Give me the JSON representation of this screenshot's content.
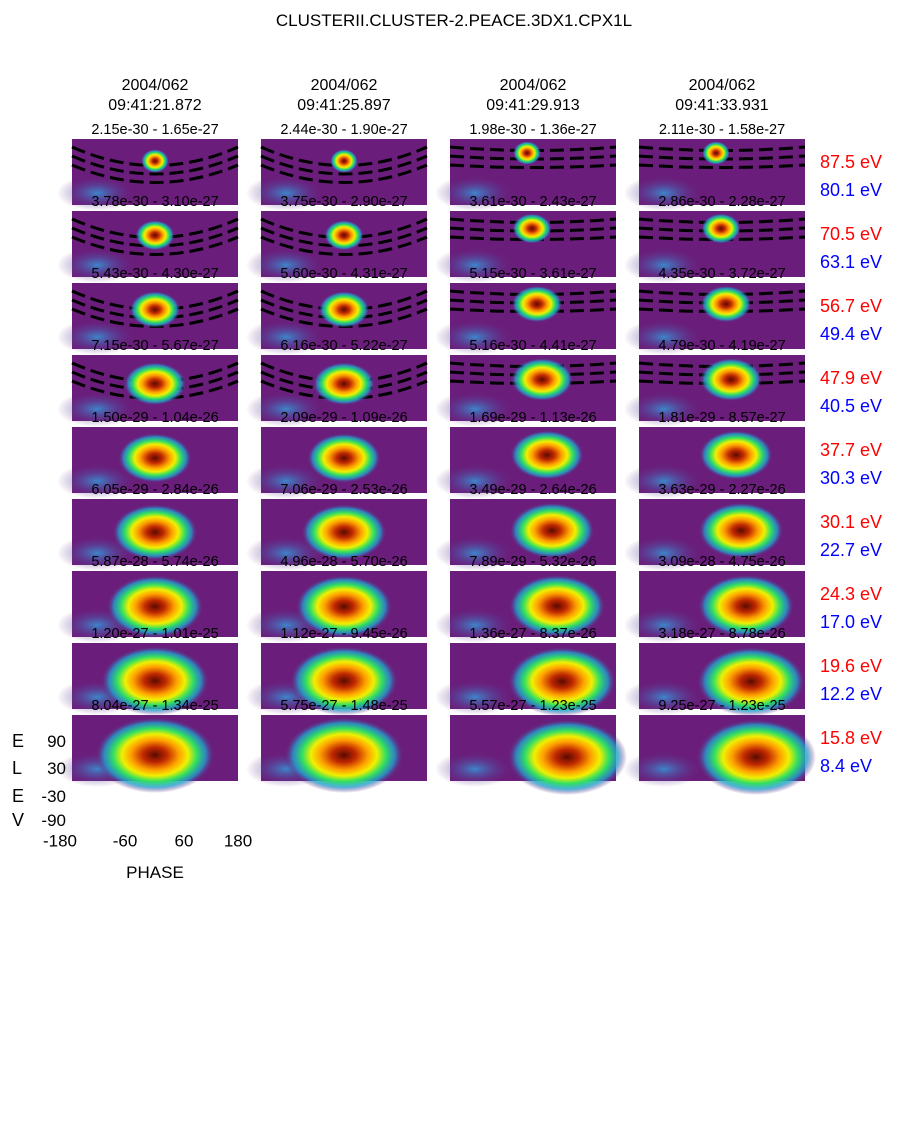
{
  "title": "CLUSTERII.CLUSTER-2.PEACE.3DX1.CPX1L",
  "columns": [
    {
      "date": "2004/062",
      "time": "09:41:21.872"
    },
    {
      "date": "2004/062",
      "time": "09:41:25.897"
    },
    {
      "date": "2004/062",
      "time": "09:41:29.913"
    },
    {
      "date": "2004/062",
      "time": "09:41:33.931"
    }
  ],
  "rows": [
    {
      "ranges": [
        "2.15e-30 - 1.65e-27",
        "2.44e-30 - 1.90e-27",
        "1.98e-30 - 1.36e-27",
        "2.11e-30 - 1.58e-27"
      ],
      "energy_high": "87.5 eV",
      "energy_low": "80.1 eV"
    },
    {
      "ranges": [
        "3.78e-30 - 3.10e-27",
        "3.75e-30 - 2.90e-27",
        "3.61e-30 - 2.43e-27",
        "2.86e-30 - 2.28e-27"
      ],
      "energy_high": "70.5 eV",
      "energy_low": "63.1 eV"
    },
    {
      "ranges": [
        "5.43e-30 - 4.30e-27",
        "5.60e-30 - 4.31e-27",
        "5.15e-30 - 3.61e-27",
        "4.35e-30 - 3.72e-27"
      ],
      "energy_high": "56.7 eV",
      "energy_low": "49.4 eV"
    },
    {
      "ranges": [
        "7.15e-30 - 5.67e-27",
        "6.16e-30 - 5.22e-27",
        "5.16e-30 - 4.41e-27",
        "4.79e-30 - 4.19e-27"
      ],
      "energy_high": "47.9 eV",
      "energy_low": "40.5 eV"
    },
    {
      "ranges": [
        "1.50e-29 - 1.04e-26",
        "2.09e-29 - 1.09e-26",
        "1.69e-29 - 1.13e-26",
        "1.81e-29 - 8.57e-27"
      ],
      "energy_high": "37.7 eV",
      "energy_low": "30.3 eV"
    },
    {
      "ranges": [
        "6.05e-29 - 2.84e-26",
        "7.06e-29 - 2.53e-26",
        "3.49e-29 - 2.64e-26",
        "3.63e-29 - 2.27e-26"
      ],
      "energy_high": "30.1 eV",
      "energy_low": "22.7 eV"
    },
    {
      "ranges": [
        "5.87e-28 - 5.74e-26",
        "4.96e-28 - 5.70e-26",
        "7.89e-29 - 5.32e-26",
        "3.09e-28 - 4.75e-26"
      ],
      "energy_high": "24.3 eV",
      "energy_low": "17.0 eV"
    },
    {
      "ranges": [
        "1.20e-27 - 1.01e-25",
        "1.12e-27 - 9.45e-26",
        "1.36e-27 - 8.37e-26",
        "3.18e-27 - 8.78e-26"
      ],
      "energy_high": "19.6 eV",
      "energy_low": "12.2 eV"
    },
    {
      "ranges": [
        "8.04e-27 - 1.34e-25",
        "5.75e-27 - 1.48e-25",
        "5.57e-27 - 1.23e-25",
        "9.25e-27 - 1.23e-25"
      ],
      "energy_high": "15.8 eV",
      "energy_low": "8.4 eV"
    }
  ],
  "y_label_letters": [
    "E",
    "L",
    "E",
    "V"
  ],
  "yticks": [
    90,
    30,
    -30,
    -90
  ],
  "xticks": [
    -180,
    -60,
    60,
    180
  ],
  "x_label": "PHASE"
}
